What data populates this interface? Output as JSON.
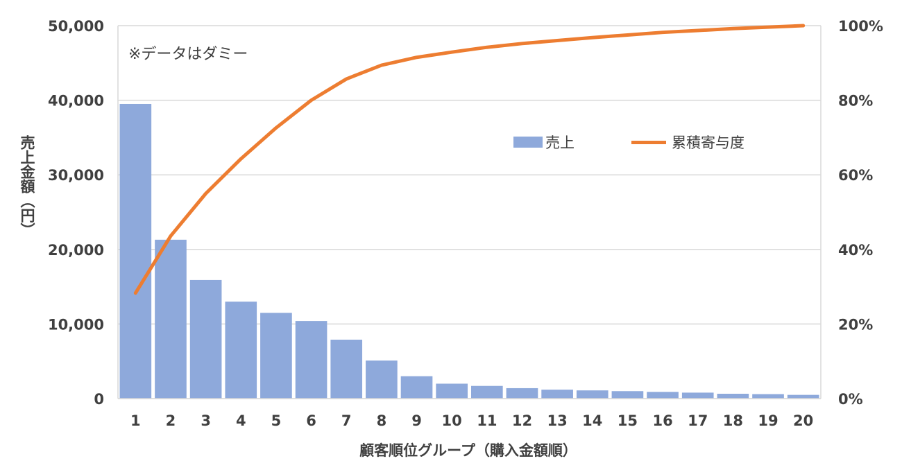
{
  "chart_data": {
    "type": "bar",
    "combo": "bar+line (pareto)",
    "categories": [
      "1",
      "2",
      "3",
      "4",
      "5",
      "6",
      "7",
      "8",
      "9",
      "10",
      "11",
      "12",
      "13",
      "14",
      "15",
      "16",
      "17",
      "18",
      "19",
      "20"
    ],
    "series": [
      {
        "name": "売上",
        "type": "bar",
        "axis": "left",
        "color": "#8EA9DB",
        "values": [
          39500,
          21300,
          15900,
          13000,
          11500,
          10400,
          7900,
          5100,
          3000,
          2000,
          1700,
          1400,
          1200,
          1100,
          1000,
          900,
          800,
          650,
          600,
          500
        ]
      },
      {
        "name": "累積寄与度",
        "type": "line",
        "axis": "right",
        "color": "#ED7D31",
        "values": [
          28.3,
          43.6,
          55.0,
          64.3,
          72.6,
          80.0,
          85.7,
          89.4,
          91.5,
          92.9,
          94.2,
          95.2,
          96.0,
          96.8,
          97.5,
          98.2,
          98.7,
          99.2,
          99.6,
          100
        ]
      }
    ],
    "xlabel": "顧客順位グループ（購入金額順）",
    "ylabel": "売上金額（円）",
    "ylim": [
      0,
      50000
    ],
    "y2lim": [
      0,
      100
    ],
    "yticks": [
      "0",
      "10,000",
      "20,000",
      "30,000",
      "40,000",
      "50,000"
    ],
    "y2ticks": [
      "0%",
      "20%",
      "40%",
      "60%",
      "80%",
      "100%"
    ],
    "annotation": "※データはダミー",
    "legend_placement": "top-right-inside",
    "grid": true
  }
}
